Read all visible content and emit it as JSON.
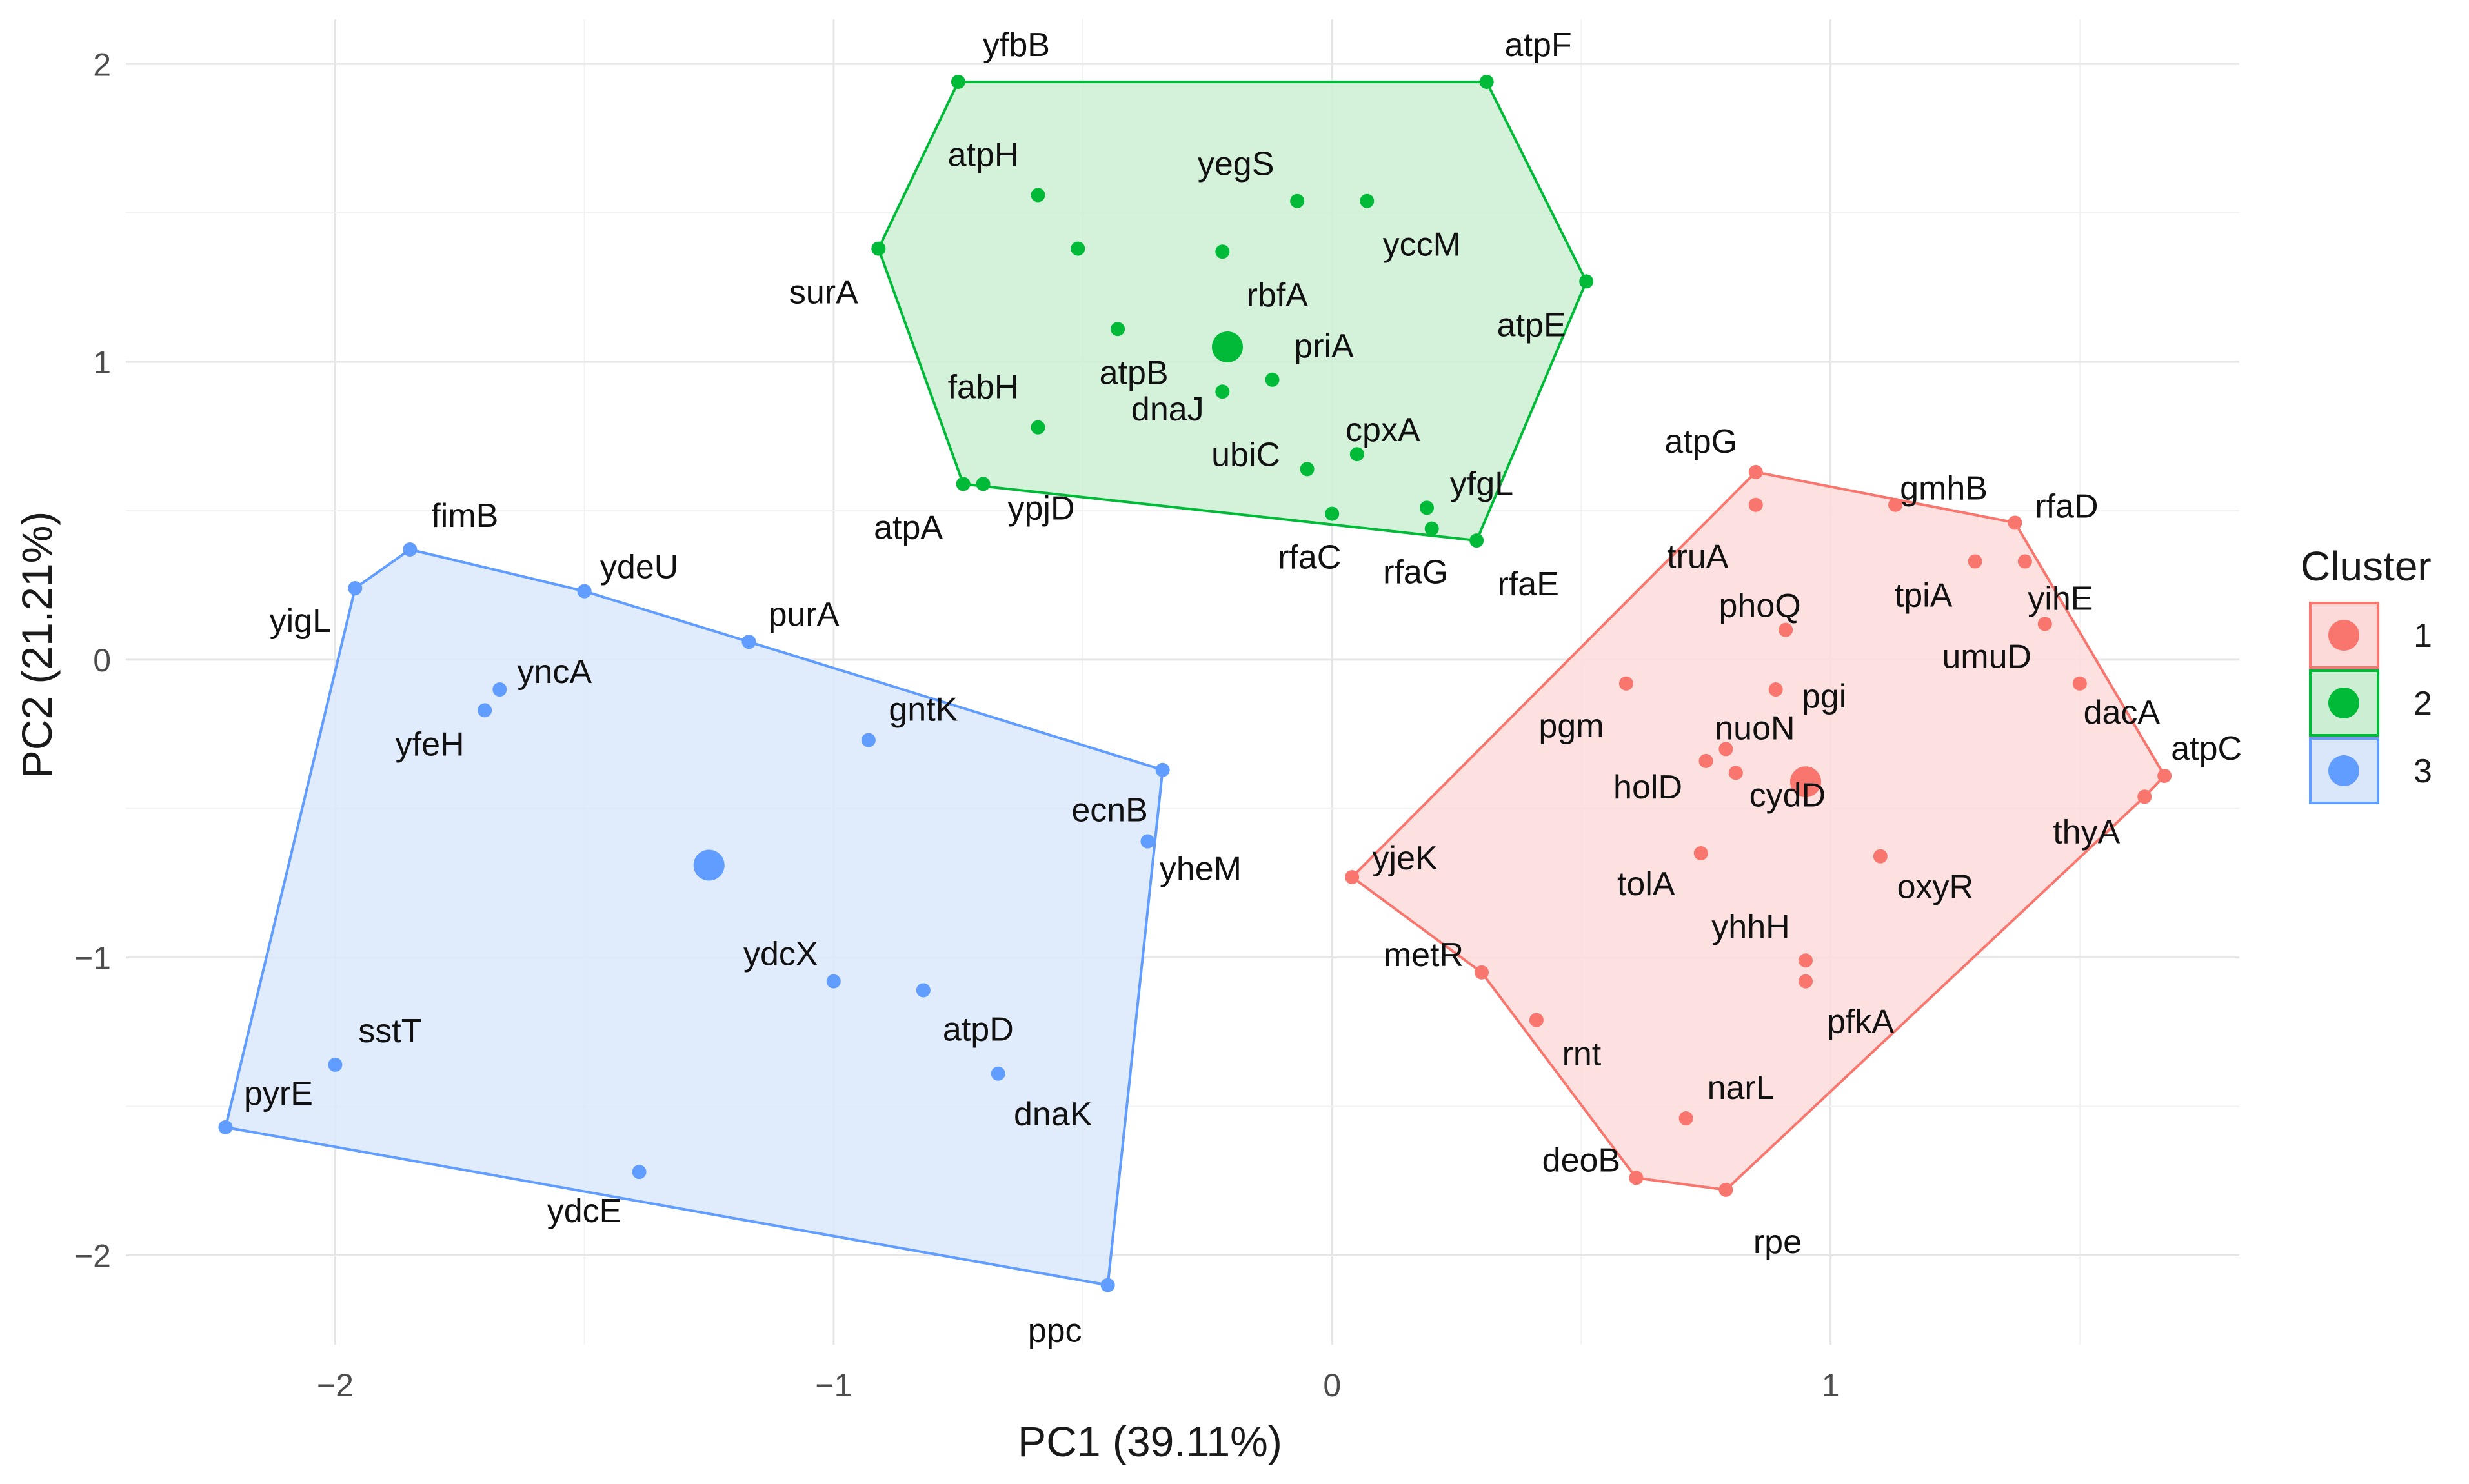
{
  "chart_data": {
    "type": "scatter",
    "title": "",
    "xlabel": "PC1 (39.11%)",
    "ylabel": "PC2 (21.21%)",
    "xlim": [
      -2.42,
      1.82
    ],
    "ylim": [
      -2.3,
      2.15
    ],
    "xticks": [
      -2,
      -1,
      0,
      1
    ],
    "xtick_labels": [
      "−2",
      "−1",
      "0",
      "1"
    ],
    "yticks": [
      -2,
      -1,
      0,
      1,
      2
    ],
    "ytick_labels": [
      "−2",
      "−1",
      "0",
      "1",
      "2"
    ],
    "grid": true,
    "legend": {
      "title": "Cluster",
      "position": "right"
    },
    "clusters": [
      {
        "id": "1",
        "color": "#F8766D",
        "fill": "#FDDADA",
        "centroid": [
          0.95,
          -0.41
        ],
        "hull": [
          "atpG",
          "rfaD",
          "atpC",
          "thyA",
          "rpe",
          "deoB",
          "metR",
          "yjeK"
        ],
        "points": [
          {
            "label": "atpG",
            "x": 0.85,
            "y": 0.63
          },
          {
            "label": "gmhB",
            "x": 1.13,
            "y": 0.52
          },
          {
            "label": "truA",
            "x": 0.85,
            "y": 0.52
          },
          {
            "label": "rfaD",
            "x": 1.37,
            "y": 0.46
          },
          {
            "label": "tpiA",
            "x": 1.29,
            "y": 0.33
          },
          {
            "label": "yihE",
            "x": 1.39,
            "y": 0.33
          },
          {
            "label": "umuD",
            "x": 1.43,
            "y": 0.12
          },
          {
            "label": "phoQ",
            "x": 0.91,
            "y": 0.1
          },
          {
            "label": "pgi",
            "x": 0.89,
            "y": -0.1
          },
          {
            "label": "dacA",
            "x": 1.5,
            "y": -0.08
          },
          {
            "label": "pgm",
            "x": 0.59,
            "y": -0.08
          },
          {
            "label": "nuoN",
            "x": 0.79,
            "y": -0.3
          },
          {
            "label": "holD",
            "x": 0.75,
            "y": -0.34
          },
          {
            "label": "cydD",
            "x": 0.81,
            "y": -0.38
          },
          {
            "label": "atpC",
            "x": 1.67,
            "y": -0.39
          },
          {
            "label": "thyA",
            "x": 1.63,
            "y": -0.46
          },
          {
            "label": "tolA",
            "x": 0.74,
            "y": -0.65
          },
          {
            "label": "oxyR",
            "x": 1.1,
            "y": -0.66
          },
          {
            "label": "yjeK",
            "x": 0.04,
            "y": -0.73
          },
          {
            "label": "yhhH",
            "x": 0.95,
            "y": -1.01
          },
          {
            "label": "pfkA",
            "x": 0.95,
            "y": -1.08
          },
          {
            "label": "metR",
            "x": 0.3,
            "y": -1.05
          },
          {
            "label": "rnt",
            "x": 0.41,
            "y": -1.21
          },
          {
            "label": "narL",
            "x": 0.71,
            "y": -1.54
          },
          {
            "label": "deoB",
            "x": 0.61,
            "y": -1.74
          },
          {
            "label": "rpe",
            "x": 0.79,
            "y": -1.78
          }
        ]
      },
      {
        "id": "2",
        "color": "#00BA38",
        "fill": "#CCEFD4",
        "centroid": [
          -0.21,
          1.05
        ],
        "hull": [
          "yfbB",
          "atpF",
          "atpE",
          "rfaE",
          "atpA",
          "surA"
        ],
        "points": [
          {
            "label": "yfbB",
            "x": -0.75,
            "y": 1.94
          },
          {
            "label": "atpF",
            "x": 0.31,
            "y": 1.94
          },
          {
            "label": "atpH",
            "x": -0.59,
            "y": 1.56
          },
          {
            "label": "yegS",
            "x": -0.07,
            "y": 1.54
          },
          {
            "label": "yccM",
            "x": 0.07,
            "y": 1.54
          },
          {
            "label": "",
            "x": -0.51,
            "y": 1.38
          },
          {
            "label": "rbfA",
            "x": -0.22,
            "y": 1.37
          },
          {
            "label": "surA",
            "x": -0.91,
            "y": 1.38
          },
          {
            "label": "atpE",
            "x": 0.51,
            "y": 1.27
          },
          {
            "label": "atpB",
            "x": -0.43,
            "y": 1.11
          },
          {
            "label": "priA",
            "x": -0.12,
            "y": 0.94
          },
          {
            "label": "dnaJ",
            "x": -0.22,
            "y": 0.9
          },
          {
            "label": "fabH",
            "x": -0.59,
            "y": 0.78
          },
          {
            "label": "cpxA",
            "x": 0.05,
            "y": 0.69
          },
          {
            "label": "ubiC",
            "x": -0.05,
            "y": 0.64
          },
          {
            "label": "atpA",
            "x": -0.74,
            "y": 0.59
          },
          {
            "label": "ypjD",
            "x": -0.7,
            "y": 0.59
          },
          {
            "label": "yfgL",
            "x": 0.19,
            "y": 0.51
          },
          {
            "label": "rfaC",
            "x": 0.0,
            "y": 0.49
          },
          {
            "label": "rfaG",
            "x": 0.2,
            "y": 0.44
          },
          {
            "label": "rfaE",
            "x": 0.29,
            "y": 0.4
          }
        ]
      },
      {
        "id": "3",
        "color": "#619CFF",
        "fill": "#DAE7FB",
        "centroid": [
          -1.25,
          -0.69
        ],
        "hull": [
          "fimB",
          "ydeU",
          "purA",
          "ecnB",
          "ppc",
          "pyrE",
          "yigL"
        ],
        "points": [
          {
            "label": "fimB",
            "x": -1.85,
            "y": 0.37
          },
          {
            "label": "yigL",
            "x": -1.96,
            "y": 0.24
          },
          {
            "label": "ydeU",
            "x": -1.5,
            "y": 0.23
          },
          {
            "label": "purA",
            "x": -1.17,
            "y": 0.06
          },
          {
            "label": "yncA",
            "x": -1.67,
            "y": -0.1
          },
          {
            "label": "yfeH",
            "x": -1.7,
            "y": -0.17
          },
          {
            "label": "gntK",
            "x": -0.93,
            "y": -0.27
          },
          {
            "label": "ecnB",
            "x": -0.34,
            "y": -0.37
          },
          {
            "label": "yheM",
            "x": -0.37,
            "y": -0.61
          },
          {
            "label": "ydcX",
            "x": -1.0,
            "y": -1.08
          },
          {
            "label": "atpD",
            "x": -0.82,
            "y": -1.11
          },
          {
            "label": "dnaK",
            "x": -0.67,
            "y": -1.39
          },
          {
            "label": "sstT",
            "x": -2.0,
            "y": -1.36
          },
          {
            "label": "pyrE",
            "x": -2.22,
            "y": -1.57
          },
          {
            "label": "ydcE",
            "x": -1.39,
            "y": -1.72
          },
          {
            "label": "ppc",
            "x": -0.45,
            "y": -2.1
          }
        ]
      }
    ]
  }
}
